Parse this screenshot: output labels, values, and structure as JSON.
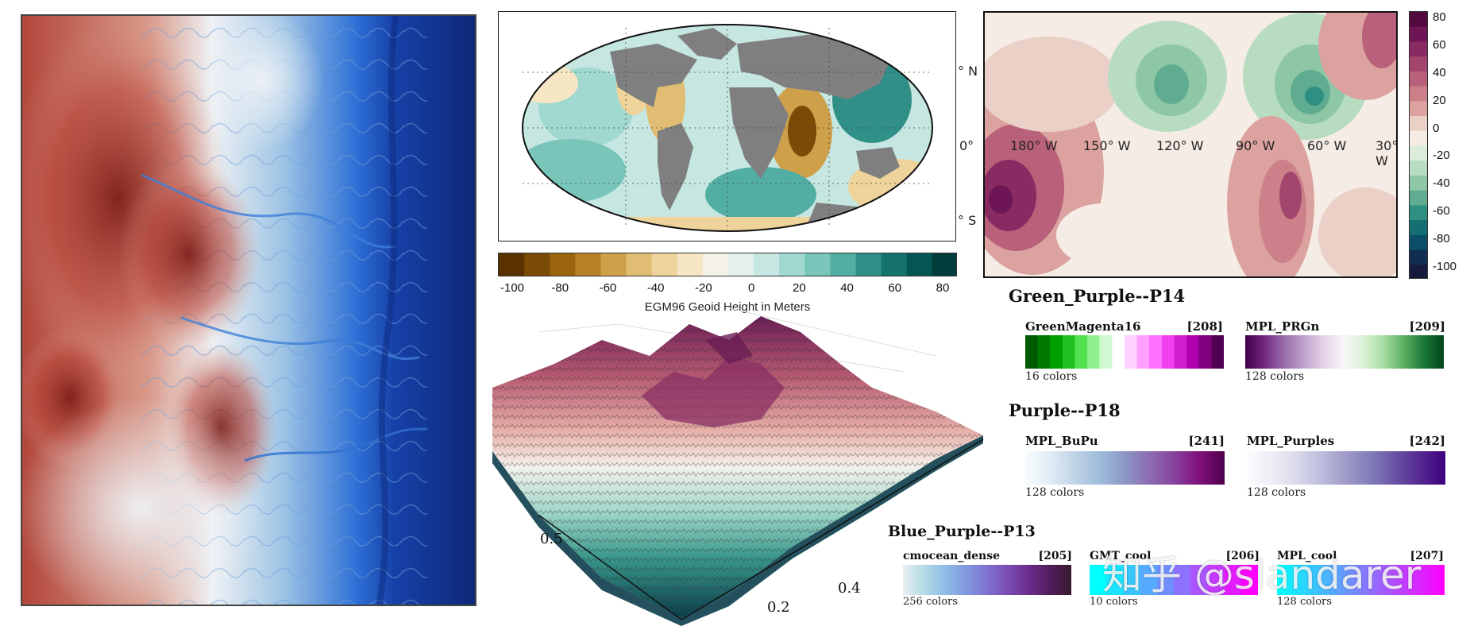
{
  "colors": {
    "geoid_scale": [
      "#5a3200",
      "#7a4a06",
      "#9a640e",
      "#b98226",
      "#cfa04a",
      "#e0bd72",
      "#eed39a",
      "#f6e6c4",
      "#f5f2e8",
      "#e4f1ee",
      "#c6e7e1",
      "#a1d8cf",
      "#79c5ba",
      "#52ada2",
      "#308f87",
      "#15726d",
      "#055552",
      "#003c3a"
    ],
    "pac_scale": [
      "#52093d",
      "#6e1556",
      "#892a62",
      "#a2466d",
      "#b9617a",
      "#cc808a",
      "#dca29f",
      "#ead0c6",
      "#f5ece6",
      "#dcecdc",
      "#b8dcc0",
      "#8ec7a5",
      "#5fac90",
      "#2f8f80",
      "#156f72",
      "#0c4e67",
      "#112e52",
      "#161a3c"
    ]
  },
  "geoid_map": {
    "lat_labels": [
      "° N",
      "0°",
      "° S"
    ]
  },
  "geoid_colorbar": {
    "ticks": [
      "-100",
      "-80",
      "-60",
      "-40",
      "-20",
      "0",
      "20",
      "40",
      "60",
      "80"
    ],
    "title": "EGM96 Geoid Height in Meters"
  },
  "pacific_map": {
    "lon_labels": [
      "180° W",
      "150° W",
      "120° W",
      "90° W",
      "60° W",
      "30° W"
    ]
  },
  "pacific_colorbar": {
    "ticks": [
      "80",
      "60",
      "40",
      "20",
      "0",
      "-20",
      "-40",
      "-60",
      "-80",
      "-100"
    ]
  },
  "surface3d": {
    "axis_labels": [
      "0.5",
      "0.4",
      "0.2"
    ]
  },
  "sections": [
    {
      "title": "Green_Purple--P14",
      "maps": [
        {
          "name": "GreenMagenta16",
          "id": "[208]",
          "count": "16 colors",
          "stops": [
            "#005a00",
            "#007a00",
            "#00a000",
            "#20c020",
            "#50e050",
            "#90f090",
            "#d0f8d0",
            "#ffffff",
            "#ffd0ff",
            "#ffa0ff",
            "#ff70ff",
            "#f040f0",
            "#d020d0",
            "#b000b0",
            "#800080",
            "#500050"
          ]
        },
        {
          "name": "MPL_PRGn",
          "id": "[209]",
          "count": "128 colors",
          "stops": [
            "#40004b",
            "#762a83",
            "#9970ab",
            "#c2a5cf",
            "#e7d4e8",
            "#f7f7f7",
            "#d9f0d3",
            "#a6dba0",
            "#5aae61",
            "#1b7837",
            "#00441b"
          ]
        }
      ]
    },
    {
      "title": "Purple--P18",
      "maps": [
        {
          "name": "MPL_BuPu",
          "id": "[241]",
          "count": "128 colors",
          "stops": [
            "#f7fcfd",
            "#e0ecf4",
            "#bfd3e6",
            "#9ebcda",
            "#8c96c6",
            "#8c6bb1",
            "#88419d",
            "#810f7c",
            "#4d004b"
          ]
        },
        {
          "name": "MPL_Purples",
          "id": "[242]",
          "count": "128 colors",
          "stops": [
            "#fcfbfd",
            "#efedf5",
            "#dadaeb",
            "#bcbddc",
            "#9e9ac8",
            "#807dba",
            "#6a51a3",
            "#54278f",
            "#3f007d"
          ]
        }
      ]
    },
    {
      "title": "Blue_Purple--P13",
      "maps": [
        {
          "name": "cmocean_dense",
          "id": "[205]",
          "count": "256 colors",
          "stops": [
            "#e6f1f1",
            "#b4d9e6",
            "#8fbde6",
            "#8199e0",
            "#7f72d0",
            "#7a4cb2",
            "#6a2d8a",
            "#511d5d",
            "#361a2d"
          ]
        },
        {
          "name": "GMT_cool",
          "id": "[206]",
          "count": "10 colors",
          "stops": [
            "#00ffff",
            "#1ce3ff",
            "#39c6ff",
            "#55aaff",
            "#718eff",
            "#8e71ff",
            "#aa55ff",
            "#c639ff",
            "#e31cff",
            "#ff00ff"
          ]
        },
        {
          "name": "MPL_cool",
          "id": "[207]",
          "count": "128 colors",
          "stops": [
            "#00ffff",
            "#40bfff",
            "#807fff",
            "#bf40ff",
            "#ff00ff"
          ]
        }
      ]
    }
  ],
  "watermark": "知乎 @slandarer"
}
